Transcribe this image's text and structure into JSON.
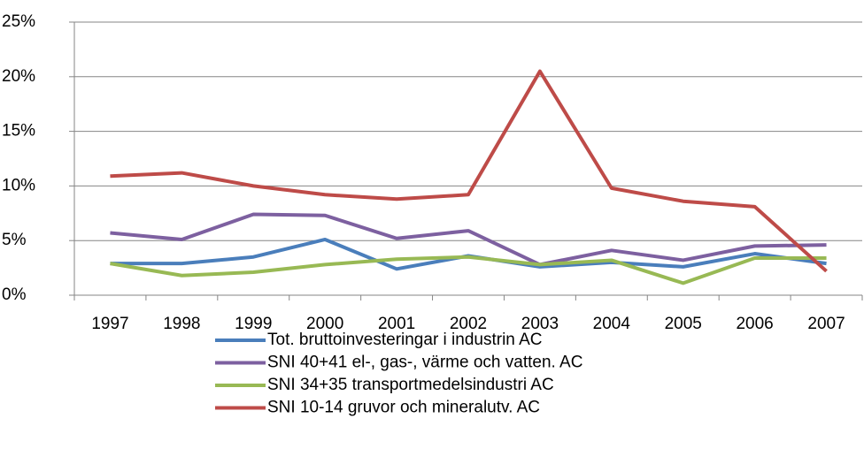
{
  "chart_data": {
    "type": "line",
    "categories": [
      "1997",
      "1998",
      "1999",
      "2000",
      "2001",
      "2002",
      "2003",
      "2004",
      "2005",
      "2006",
      "2007"
    ],
    "series": [
      {
        "name": "Tot. bruttoinvesteringar i industrin AC",
        "color": "#4a7ebb",
        "values": [
          2.9,
          2.9,
          3.5,
          5.1,
          2.4,
          3.6,
          2.6,
          3.0,
          2.6,
          3.8,
          2.9
        ]
      },
      {
        "name": "SNI 40+41 el-, gas-, värme och vatten. AC",
        "color": "#7d60a0",
        "values": [
          5.7,
          5.1,
          7.4,
          7.3,
          5.2,
          5.9,
          2.8,
          4.1,
          3.2,
          4.5,
          4.6
        ]
      },
      {
        "name": "SNI 34+35 transportmedelsindustri AC",
        "color": "#98b954",
        "values": [
          2.9,
          1.8,
          2.1,
          2.8,
          3.3,
          3.5,
          2.8,
          3.2,
          1.1,
          3.4,
          3.4
        ]
      },
      {
        "name": "SNI 10-14 gruvor och mineralutv. AC",
        "color": "#be4b48",
        "values": [
          10.9,
          11.2,
          10.0,
          9.2,
          8.8,
          9.2,
          20.5,
          9.8,
          8.6,
          8.1,
          2.2
        ]
      }
    ],
    "ylim": [
      0,
      25
    ],
    "yticks": [
      {
        "value": 0,
        "label": "0%"
      },
      {
        "value": 5,
        "label": "5%"
      },
      {
        "value": 10,
        "label": "10%"
      },
      {
        "value": 15,
        "label": "15%"
      },
      {
        "value": 20,
        "label": "20%"
      },
      {
        "value": 25,
        "label": "25%"
      }
    ],
    "grid": true,
    "legend": "bottom"
  }
}
